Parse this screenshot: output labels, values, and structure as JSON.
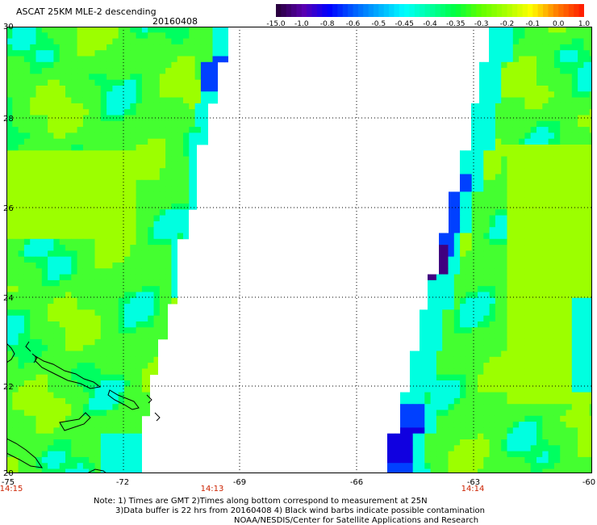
{
  "header": {
    "title": "ASCAT 25KM MLE-2 descending",
    "date": "20160408"
  },
  "colorbar": {
    "labels": [
      "-15.0",
      "-1.0",
      "-0.8",
      "-0.6",
      "-0.5",
      "-0.45",
      "-0.4",
      "-0.35",
      "-0.3",
      "-0.2",
      "-0.1",
      "0.0",
      "1.0"
    ],
    "colors": [
      "#2a0040",
      "#5a00b0",
      "#0000ff",
      "#0060ff",
      "#00b0ff",
      "#00ffff",
      "#00ffa0",
      "#00ff40",
      "#60ff00",
      "#a8ff00",
      "#ffff00",
      "#ff8000",
      "#ff2000"
    ]
  },
  "map": {
    "lat_labels": [
      "30",
      "28",
      "26",
      "24",
      "22",
      "20"
    ],
    "lon_labels": [
      "-75",
      "-72",
      "-69",
      "-66",
      "-63",
      "-60"
    ],
    "lat_range": [
      20,
      30
    ],
    "lon_range": [
      -75,
      -60
    ],
    "grid": true,
    "swath_times": [
      "14:15",
      "14:13",
      "14:14"
    ],
    "field_colors": {
      "base": "#44ff30",
      "lime": "#9cff00",
      "green": "#00ff60",
      "cyan": "#00ffe0",
      "lightblue": "#00c8ff",
      "blue": "#0040ff",
      "darkblue": "#1000e0",
      "purple": "#400080"
    }
  },
  "footer": {
    "line1": "Note: 1) Times are GMT 2)Times along bottom correspond to measurement at 25N",
    "line2": "3)Data buffer is 22 hrs from 20160408 4) Black wind barbs indicate possible contamination",
    "line3": "NOAA/NESDIS/Center for Satellite Applications and Research"
  }
}
